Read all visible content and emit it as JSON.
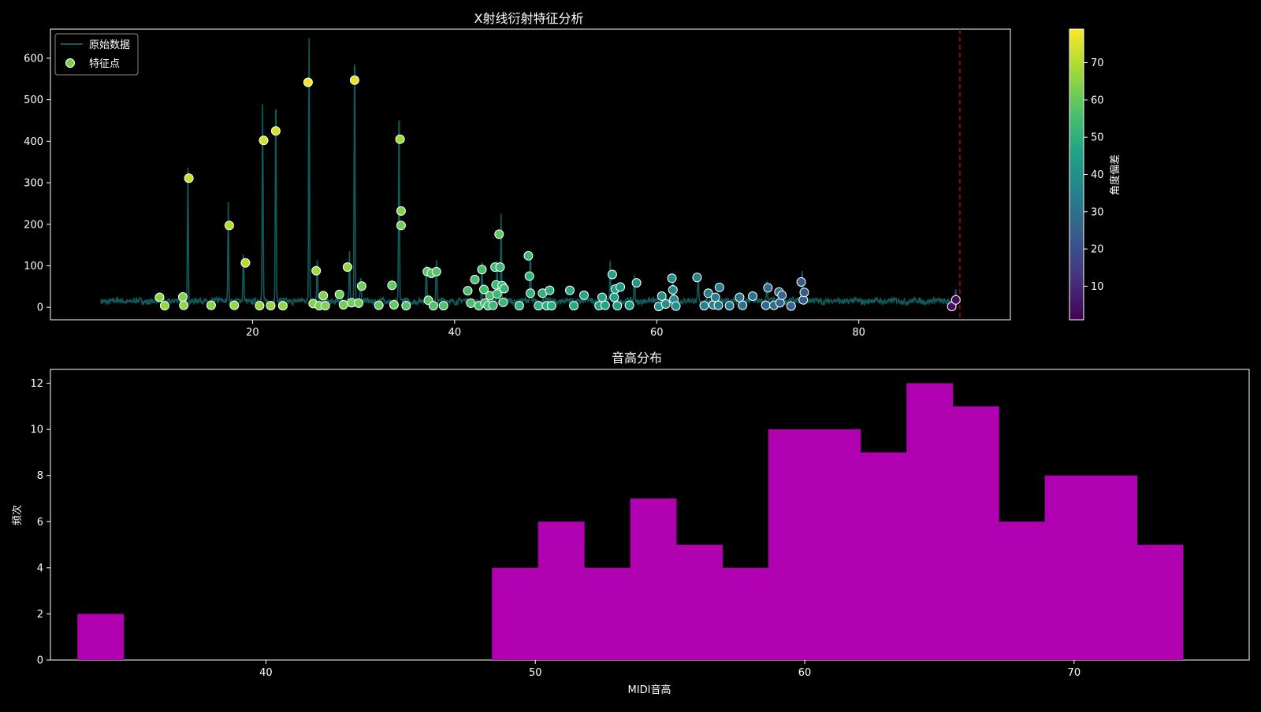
{
  "chart_data": [
    {
      "type": "line",
      "title": "X射线衍射特征分析",
      "xlabel": "",
      "ylabel": "",
      "xlim": [
        0,
        95
      ],
      "ylim": [
        -30,
        670
      ],
      "x_ticks": [
        20,
        40,
        60,
        80
      ],
      "y_ticks": [
        0,
        100,
        200,
        300,
        400,
        500,
        600
      ],
      "grid": false,
      "legend_position": "top-left",
      "legend": [
        "原始数据",
        "特征点"
      ],
      "colorbar": {
        "label": "角度偏差",
        "range": [
          1,
          79
        ],
        "ticks": [
          10,
          20,
          30,
          40,
          50,
          60,
          70
        ],
        "colormap": "viridis"
      },
      "reference_line": {
        "x": 90,
        "color": "#cc0000",
        "style": "dashed"
      },
      "colors": {
        "line": "#0f5a5a",
        "point_edge": "#ffffff"
      },
      "peaks": [
        [
          13.6,
          330
        ],
        [
          17.6,
          235
        ],
        [
          19.1,
          120
        ],
        [
          21.0,
          470
        ],
        [
          22.3,
          510
        ],
        [
          25.6,
          640
        ],
        [
          26.4,
          95
        ],
        [
          29.6,
          120
        ],
        [
          30.1,
          635
        ],
        [
          30.7,
          60
        ],
        [
          34.5,
          480
        ],
        [
          37.2,
          90
        ],
        [
          38.2,
          105
        ],
        [
          42.7,
          95
        ],
        [
          44.2,
          100
        ],
        [
          44.6,
          205
        ],
        [
          47.5,
          125
        ],
        [
          55.4,
          90
        ],
        [
          57.8,
          70
        ],
        [
          61.6,
          60
        ],
        [
          64.1,
          70
        ],
        [
          70.9,
          55
        ],
        [
          74.4,
          75
        ],
        [
          89.6,
          20
        ]
      ],
      "points": [
        {
          "x": 10.8,
          "y": 24,
          "c": 65
        },
        {
          "x": 11.3,
          "y": 4,
          "c": 66
        },
        {
          "x": 13.1,
          "y": 25,
          "c": 64
        },
        {
          "x": 13.2,
          "y": 5,
          "c": 66
        },
        {
          "x": 13.7,
          "y": 311,
          "c": 72
        },
        {
          "x": 15.9,
          "y": 5,
          "c": 65
        },
        {
          "x": 17.7,
          "y": 197,
          "c": 70
        },
        {
          "x": 18.2,
          "y": 5,
          "c": 66
        },
        {
          "x": 19.3,
          "y": 107,
          "c": 70
        },
        {
          "x": 20.7,
          "y": 4,
          "c": 66
        },
        {
          "x": 21.1,
          "y": 402,
          "c": 74
        },
        {
          "x": 21.8,
          "y": 4,
          "c": 66
        },
        {
          "x": 22.3,
          "y": 425,
          "c": 74
        },
        {
          "x": 23.0,
          "y": 4,
          "c": 66
        },
        {
          "x": 25.5,
          "y": 542,
          "c": 78
        },
        {
          "x": 26.0,
          "y": 9,
          "c": 64
        },
        {
          "x": 26.3,
          "y": 88,
          "c": 68
        },
        {
          "x": 26.6,
          "y": 4,
          "c": 63
        },
        {
          "x": 27.0,
          "y": 28,
          "c": 64
        },
        {
          "x": 27.2,
          "y": 4,
          "c": 64
        },
        {
          "x": 28.6,
          "y": 31,
          "c": 62
        },
        {
          "x": 29.0,
          "y": 6,
          "c": 62
        },
        {
          "x": 29.4,
          "y": 97,
          "c": 66
        },
        {
          "x": 29.8,
          "y": 11,
          "c": 62
        },
        {
          "x": 30.1,
          "y": 547,
          "c": 76
        },
        {
          "x": 30.5,
          "y": 10,
          "c": 62
        },
        {
          "x": 30.8,
          "y": 51,
          "c": 62
        },
        {
          "x": 32.5,
          "y": 5,
          "c": 60
        },
        {
          "x": 33.8,
          "y": 53,
          "c": 60
        },
        {
          "x": 34.0,
          "y": 6,
          "c": 60
        },
        {
          "x": 34.6,
          "y": 405,
          "c": 68
        },
        {
          "x": 34.7,
          "y": 232,
          "c": 64
        },
        {
          "x": 34.7,
          "y": 197,
          "c": 62
        },
        {
          "x": 35.2,
          "y": 4,
          "c": 58
        },
        {
          "x": 37.3,
          "y": 86,
          "c": 58
        },
        {
          "x": 37.4,
          "y": 17,
          "c": 58
        },
        {
          "x": 37.7,
          "y": 82,
          "c": 58
        },
        {
          "x": 37.9,
          "y": 4,
          "c": 57
        },
        {
          "x": 38.2,
          "y": 86,
          "c": 58
        },
        {
          "x": 38.9,
          "y": 4,
          "c": 57
        },
        {
          "x": 41.3,
          "y": 40,
          "c": 56
        },
        {
          "x": 41.6,
          "y": 10,
          "c": 56
        },
        {
          "x": 42.0,
          "y": 67,
          "c": 56
        },
        {
          "x": 42.4,
          "y": 4,
          "c": 55
        },
        {
          "x": 42.7,
          "y": 91,
          "c": 56
        },
        {
          "x": 42.9,
          "y": 43,
          "c": 55
        },
        {
          "x": 43.0,
          "y": 10,
          "c": 55
        },
        {
          "x": 43.3,
          "y": 4,
          "c": 55
        },
        {
          "x": 43.5,
          "y": 28,
          "c": 55
        },
        {
          "x": 43.8,
          "y": 5,
          "c": 54
        },
        {
          "x": 44.0,
          "y": 97,
          "c": 54
        },
        {
          "x": 44.1,
          "y": 54,
          "c": 54
        },
        {
          "x": 44.2,
          "y": 32,
          "c": 54
        },
        {
          "x": 44.4,
          "y": 176,
          "c": 60
        },
        {
          "x": 44.5,
          "y": 97,
          "c": 54
        },
        {
          "x": 44.7,
          "y": 52,
          "c": 54
        },
        {
          "x": 44.8,
          "y": 12,
          "c": 54
        },
        {
          "x": 44.9,
          "y": 45,
          "c": 53
        },
        {
          "x": 46.4,
          "y": 4,
          "c": 52
        },
        {
          "x": 47.3,
          "y": 124,
          "c": 54
        },
        {
          "x": 47.4,
          "y": 75,
          "c": 52
        },
        {
          "x": 47.5,
          "y": 34,
          "c": 52
        },
        {
          "x": 48.3,
          "y": 4,
          "c": 51
        },
        {
          "x": 48.7,
          "y": 34,
          "c": 51
        },
        {
          "x": 49.1,
          "y": 4,
          "c": 50
        },
        {
          "x": 49.4,
          "y": 41,
          "c": 50
        },
        {
          "x": 49.6,
          "y": 4,
          "c": 50
        },
        {
          "x": 51.4,
          "y": 41,
          "c": 48
        },
        {
          "x": 51.8,
          "y": 4,
          "c": 48
        },
        {
          "x": 52.8,
          "y": 29,
          "c": 47
        },
        {
          "x": 54.3,
          "y": 4,
          "c": 46
        },
        {
          "x": 54.6,
          "y": 24,
          "c": 46
        },
        {
          "x": 54.9,
          "y": 5,
          "c": 46
        },
        {
          "x": 55.6,
          "y": 79,
          "c": 46
        },
        {
          "x": 55.8,
          "y": 24,
          "c": 45
        },
        {
          "x": 55.9,
          "y": 44,
          "c": 45
        },
        {
          "x": 56.1,
          "y": 4,
          "c": 44
        },
        {
          "x": 56.4,
          "y": 49,
          "c": 44
        },
        {
          "x": 57.3,
          "y": 5,
          "c": 43
        },
        {
          "x": 58.0,
          "y": 59,
          "c": 42
        },
        {
          "x": 60.2,
          "y": 2,
          "c": 40
        },
        {
          "x": 60.5,
          "y": 27,
          "c": 40
        },
        {
          "x": 60.9,
          "y": 8,
          "c": 40
        },
        {
          "x": 61.5,
          "y": 70,
          "c": 40
        },
        {
          "x": 61.6,
          "y": 42,
          "c": 39
        },
        {
          "x": 61.7,
          "y": 19,
          "c": 39
        },
        {
          "x": 61.9,
          "y": 3,
          "c": 39
        },
        {
          "x": 64.0,
          "y": 72,
          "c": 36
        },
        {
          "x": 64.7,
          "y": 4,
          "c": 35
        },
        {
          "x": 65.1,
          "y": 34,
          "c": 35
        },
        {
          "x": 65.6,
          "y": 6,
          "c": 34
        },
        {
          "x": 65.8,
          "y": 24,
          "c": 34
        },
        {
          "x": 66.1,
          "y": 5,
          "c": 34
        },
        {
          "x": 66.2,
          "y": 48,
          "c": 34
        },
        {
          "x": 67.2,
          "y": 4,
          "c": 33
        },
        {
          "x": 68.2,
          "y": 24,
          "c": 31
        },
        {
          "x": 68.5,
          "y": 5,
          "c": 31
        },
        {
          "x": 69.5,
          "y": 27,
          "c": 30
        },
        {
          "x": 70.8,
          "y": 5,
          "c": 28
        },
        {
          "x": 71.0,
          "y": 47,
          "c": 28
        },
        {
          "x": 71.6,
          "y": 5,
          "c": 28
        },
        {
          "x": 72.1,
          "y": 37,
          "c": 27
        },
        {
          "x": 72.2,
          "y": 11,
          "c": 27
        },
        {
          "x": 72.4,
          "y": 29,
          "c": 27
        },
        {
          "x": 73.3,
          "y": 3,
          "c": 26
        },
        {
          "x": 74.3,
          "y": 61,
          "c": 24
        },
        {
          "x": 74.5,
          "y": 18,
          "c": 24
        },
        {
          "x": 74.6,
          "y": 36,
          "c": 24
        },
        {
          "x": 89.2,
          "y": 2,
          "c": 4
        },
        {
          "x": 89.6,
          "y": 18,
          "c": 3
        }
      ]
    },
    {
      "type": "bar",
      "title": "音高分布",
      "xlabel": "MIDI音高",
      "ylabel": "频次",
      "xlim": [
        32.0,
        76.5
      ],
      "ylim": [
        0,
        12.6
      ],
      "x_ticks": [
        40,
        50,
        60,
        70
      ],
      "y_ticks": [
        0,
        2,
        4,
        6,
        8,
        10,
        12
      ],
      "grid": false,
      "bin_start": 33.0,
      "bin_width": 1.71,
      "values": [
        2,
        0,
        0,
        0,
        0,
        0,
        0,
        0,
        0,
        4,
        6,
        4,
        7,
        5,
        4,
        10,
        10,
        9,
        12,
        11,
        6,
        8,
        8,
        5
      ],
      "colors": {
        "bar": "#b000b0"
      }
    }
  ]
}
